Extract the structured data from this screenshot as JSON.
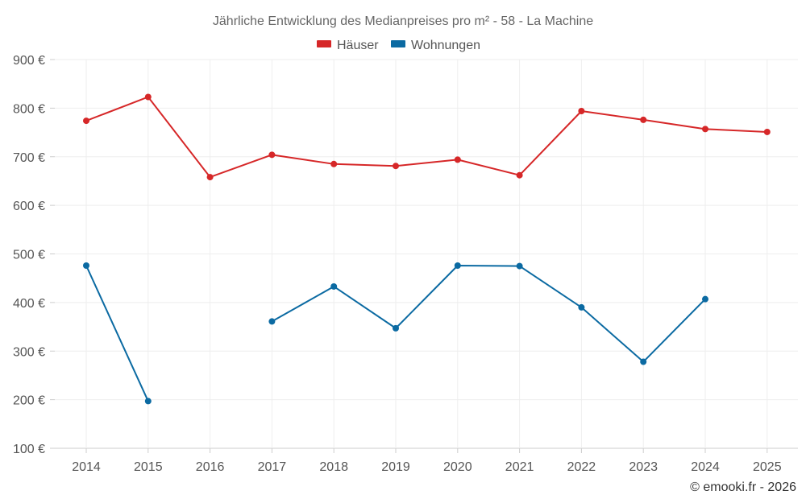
{
  "chart_data": {
    "type": "line",
    "title": "Jährliche Entwicklung des Medianpreises pro m² - 58 - La Machine",
    "categories": [
      "2014",
      "2015",
      "2016",
      "2017",
      "2018",
      "2019",
      "2020",
      "2021",
      "2022",
      "2023",
      "2024",
      "2025"
    ],
    "y_ticks": [
      "100 €",
      "200 €",
      "300 €",
      "400 €",
      "500 €",
      "600 €",
      "700 €",
      "800 €",
      "900 €"
    ],
    "ylim": [
      100,
      900
    ],
    "grid": true,
    "legend_position": "top-center",
    "series": [
      {
        "name": "Häuser",
        "color": "#d62728",
        "values": [
          774,
          823,
          658,
          704,
          685,
          681,
          694,
          662,
          794,
          776,
          757,
          751
        ]
      },
      {
        "name": "Wohnungen",
        "color": "#0b6aa2",
        "values": [
          476,
          197,
          null,
          361,
          433,
          347,
          476,
          475,
          390,
          278,
          407,
          null
        ]
      }
    ],
    "credit": "© emooki.fr - 2026"
  }
}
